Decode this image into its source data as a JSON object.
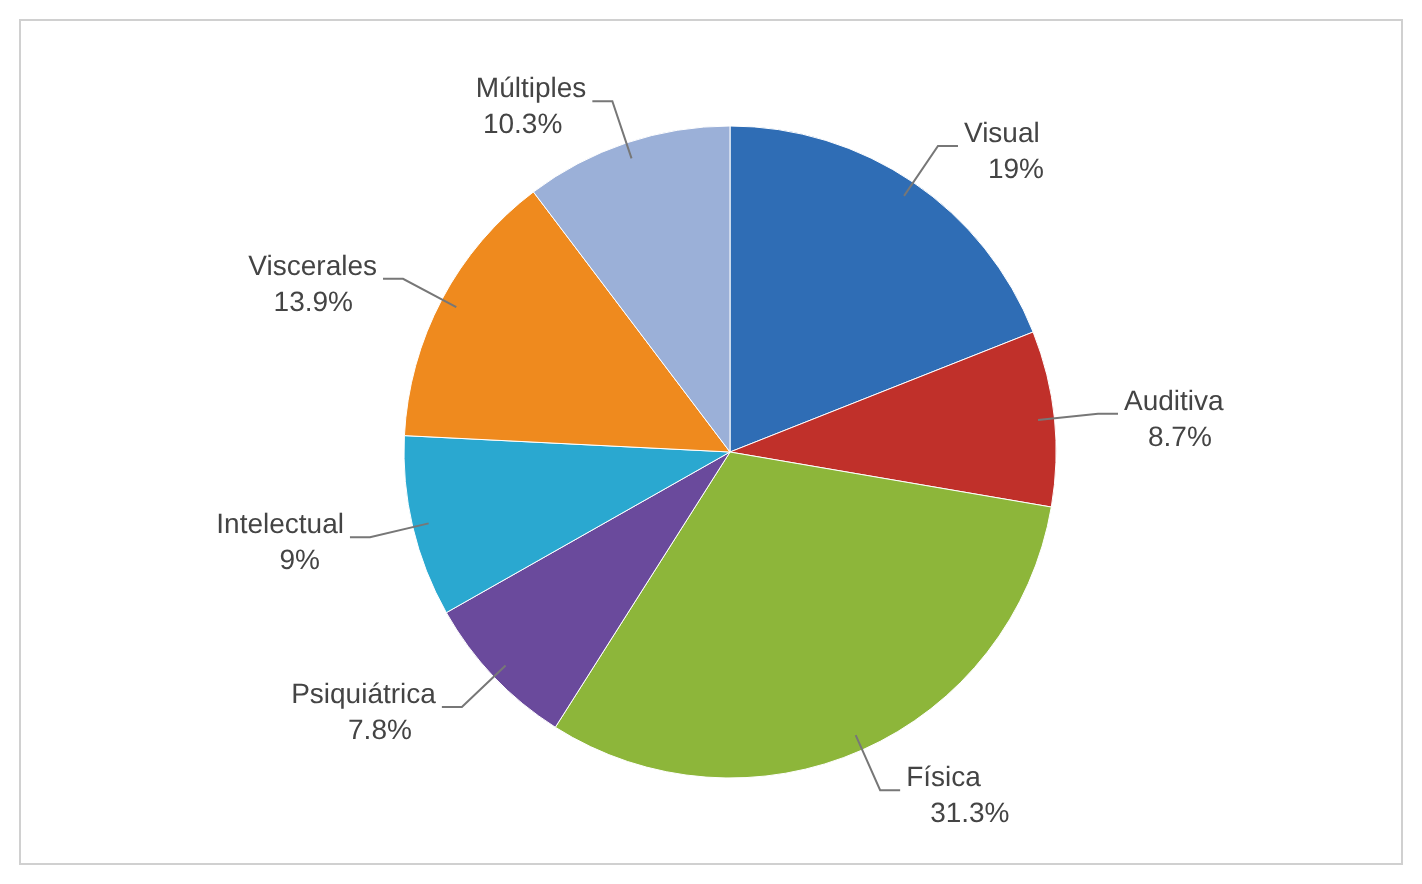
{
  "chart_data": {
    "type": "pie",
    "categories": [
      "Visual",
      "Auditiva",
      "Física",
      "Psiquiátrica",
      "Intelectual",
      "Viscerales",
      "Múltiples"
    ],
    "values": [
      19,
      8.7,
      31.3,
      7.8,
      9,
      13.9,
      10.3
    ],
    "value_labels": [
      "19%",
      "8.7%",
      "31.3%",
      "7.8%",
      "9%",
      "13.9%",
      "10.3%"
    ],
    "colors": [
      "#2f6db5",
      "#c0302a",
      "#8db63a",
      "#6a4a9c",
      "#2aa8d0",
      "#ef8a1e",
      "#9bb0d8"
    ],
    "legend": false
  }
}
